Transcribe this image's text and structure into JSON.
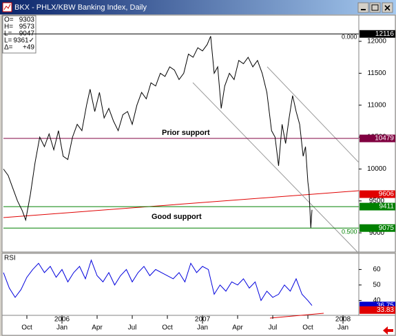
{
  "window": {
    "title": "BKX - PHLX/KBW Banking Index, Daily"
  },
  "info": [
    {
      "label": "O=",
      "value": 9303
    },
    {
      "label": "H=",
      "value": 9573
    },
    {
      "label": "L=",
      "value": 9047
    },
    {
      "label": "L=",
      "value": "9361✓"
    },
    {
      "label": "Δ=",
      "value": "+49"
    }
  ],
  "chart_data": [
    {
      "type": "line",
      "color": "#000000",
      "xlim": [
        -2,
        28.35
      ],
      "ylim": [
        8700,
        12410
      ],
      "yticks": [
        9000,
        9500,
        10000,
        10500,
        11000,
        11500,
        12000
      ],
      "annotations": [
        "Prior support",
        "Good support",
        "0.000",
        "0.500"
      ],
      "levels": [
        {
          "value": 12116,
          "color": "#000000",
          "line": true
        },
        {
          "value": 10479,
          "color": "#800040",
          "line": true
        },
        {
          "value": 9606,
          "color": "#e00000",
          "line": false
        },
        {
          "value": 9411,
          "color": "#008000",
          "line": true
        },
        {
          "value": 9075,
          "color": "#008000",
          "line": true
        }
      ],
      "x": [
        -2,
        -1.6,
        -1.2,
        -0.8,
        -0.4,
        -0.1,
        0.3,
        0.7,
        1.1,
        1.5,
        1.9,
        2.3,
        2.7,
        3.1,
        3.5,
        3.9,
        4.3,
        4.7,
        5.1,
        5.4,
        5.8,
        6.2,
        6.6,
        7.0,
        7.4,
        7.8,
        8.2,
        8.6,
        9.0,
        9.4,
        9.8,
        10.2,
        10.6,
        11.0,
        11.4,
        11.8,
        12.2,
        12.6,
        13.0,
        13.4,
        13.8,
        14.2,
        14.6,
        15.0,
        15.4,
        15.7,
        16.0,
        16.3,
        16.6,
        16.9,
        17.3,
        17.7,
        18.1,
        18.5,
        18.9,
        19.3,
        19.7,
        20.1,
        20.5,
        20.9,
        21.2,
        21.5,
        21.8,
        22.1,
        22.4,
        22.7,
        23.0,
        23.3,
        23.6,
        23.8,
        24.0,
        24.1,
        24.25,
        24.35
      ],
      "values": [
        10000,
        9900,
        9700,
        9500,
        9350,
        9200,
        9600,
        10100,
        10500,
        10350,
        10550,
        10300,
        10600,
        10200,
        10150,
        10500,
        10700,
        10600,
        11000,
        11250,
        10900,
        11200,
        10800,
        10950,
        10750,
        10600,
        10850,
        10900,
        10700,
        11000,
        11200,
        11100,
        11350,
        11300,
        11500,
        11450,
        11600,
        11550,
        11400,
        11500,
        11800,
        11750,
        11900,
        11850,
        11950,
        12080,
        11500,
        11600,
        10950,
        11300,
        11500,
        11400,
        11700,
        11650,
        11750,
        11600,
        11700,
        11500,
        11200,
        10600,
        10500,
        10050,
        10700,
        10400,
        10800,
        11150,
        10900,
        10700,
        10200,
        10350,
        9800,
        9650,
        9080,
        9361
      ]
    },
    {
      "type": "line",
      "title": "RSI",
      "color": "#0000dd",
      "xlim": [
        -2,
        28.35
      ],
      "ylim": [
        30.4,
        70.4
      ],
      "yticks": [
        40,
        50,
        60
      ],
      "xticks": [
        {
          "value": 0,
          "label": "Oct"
        },
        {
          "value": 3,
          "label": "Jan"
        },
        {
          "value": 6,
          "label": "Apr"
        },
        {
          "value": 9,
          "label": "Jul"
        },
        {
          "value": 12,
          "label": "Oct"
        },
        {
          "value": 15,
          "label": "Jan"
        },
        {
          "value": 18,
          "label": "Apr"
        },
        {
          "value": 21,
          "label": "Jul"
        },
        {
          "value": 24,
          "label": "Oct"
        },
        {
          "value": 27,
          "label": "Jan"
        }
      ],
      "years": [
        {
          "value": 3,
          "label": "2006"
        },
        {
          "value": 15,
          "label": "2007"
        },
        {
          "value": 27,
          "label": "2008"
        }
      ],
      "levels": [
        {
          "value": 36.75,
          "color": "#0000cc"
        },
        {
          "value": 33.83,
          "color": "#e00000"
        }
      ],
      "x": [
        -2,
        -1.5,
        -1,
        -0.5,
        0,
        0.5,
        1,
        1.5,
        2,
        2.5,
        3,
        3.5,
        4,
        4.5,
        5,
        5.5,
        6,
        6.5,
        7,
        7.5,
        8,
        8.5,
        9,
        9.5,
        10,
        10.5,
        11,
        11.5,
        12,
        12.5,
        13,
        13.5,
        14,
        14.5,
        15,
        15.5,
        16,
        16.5,
        17,
        17.5,
        18,
        18.5,
        19,
        19.5,
        20,
        20.5,
        21,
        21.5,
        22,
        22.5,
        23,
        23.5,
        24,
        24.35
      ],
      "values": [
        58,
        48,
        42,
        47,
        55,
        60,
        64,
        58,
        62,
        55,
        60,
        52,
        58,
        62,
        54,
        66,
        56,
        52,
        58,
        50,
        56,
        60,
        52,
        58,
        62,
        56,
        60,
        58,
        56,
        54,
        58,
        52,
        64,
        58,
        62,
        60,
        44,
        50,
        46,
        52,
        50,
        54,
        48,
        52,
        40,
        46,
        42,
        44,
        50,
        46,
        54,
        44,
        40,
        36.75
      ]
    }
  ]
}
